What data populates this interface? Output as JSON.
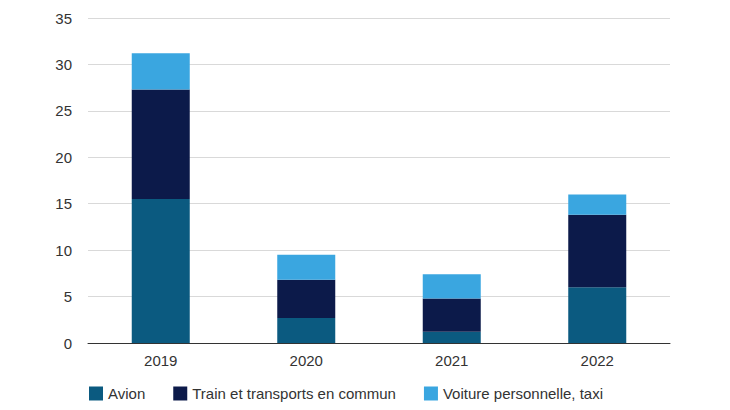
{
  "chart_data": {
    "type": "bar",
    "stacked": true,
    "categories": [
      "2019",
      "2020",
      "2021",
      "2022"
    ],
    "series": [
      {
        "name": "Avion",
        "color": "#0b5a80",
        "values": [
          15.5,
          2.7,
          1.2,
          6.0
        ]
      },
      {
        "name": "Train et transports en commun",
        "color": "#0c1a4a",
        "values": [
          11.8,
          4.1,
          3.6,
          7.8
        ]
      },
      {
        "name": "Voiture personnelle, taxi",
        "color": "#3aa6e0",
        "values": [
          3.9,
          2.7,
          2.6,
          2.2
        ]
      }
    ],
    "ylim": [
      0,
      35
    ],
    "yticks": [
      0,
      5,
      10,
      15,
      20,
      25,
      30,
      35
    ],
    "grid": true,
    "legend": "bottom"
  }
}
